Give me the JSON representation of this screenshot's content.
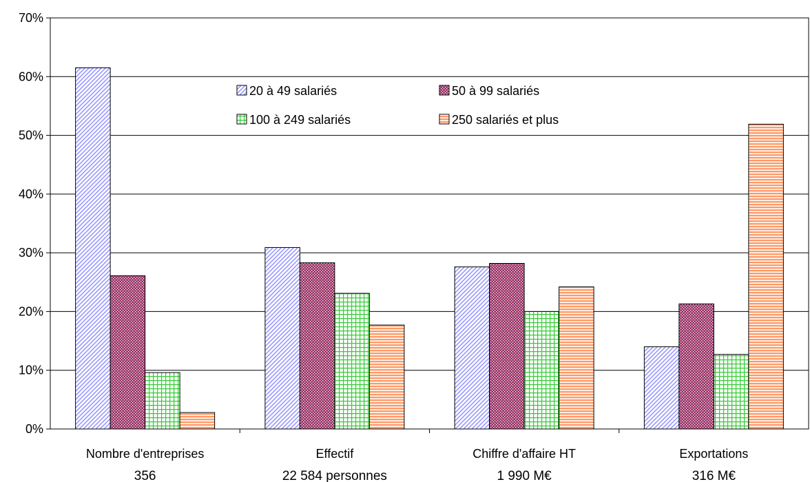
{
  "chart_data": {
    "type": "bar",
    "title": "",
    "xlabel": "",
    "ylabel": "",
    "ylim": [
      0,
      70
    ],
    "y_ticks": [
      "0%",
      "10%",
      "20%",
      "30%",
      "40%",
      "50%",
      "60%",
      "70%"
    ],
    "grid": "horizontal",
    "legend_position": "top-center",
    "categories": [
      {
        "label": "Nombre d'entreprises",
        "sublabel": "356"
      },
      {
        "label": "Effectif",
        "sublabel": "22 584 personnes"
      },
      {
        "label": "Chiffre d'affaire HT",
        "sublabel": "1 990 M€"
      },
      {
        "label": "Exportations",
        "sublabel": "316 M€"
      }
    ],
    "series": [
      {
        "name": "20 à 49 salariés",
        "color": "#9999ff",
        "pattern": "diagonal-hatch",
        "values": [
          61.5,
          30.9,
          27.6,
          14.0
        ]
      },
      {
        "name": "50 à 99 salariés",
        "color": "#993366",
        "pattern": "crosshatch-dots",
        "values": [
          26.1,
          28.3,
          28.2,
          21.3
        ]
      },
      {
        "name": "100 à 249 salariés",
        "color": "#33cc33",
        "pattern": "grid",
        "values": [
          9.6,
          23.1,
          20.0,
          12.7
        ]
      },
      {
        "name": "250 salariés et plus",
        "color": "#ff9966",
        "pattern": "horizontal-stripes",
        "values": [
          2.8,
          17.7,
          24.2,
          51.9
        ]
      }
    ]
  }
}
